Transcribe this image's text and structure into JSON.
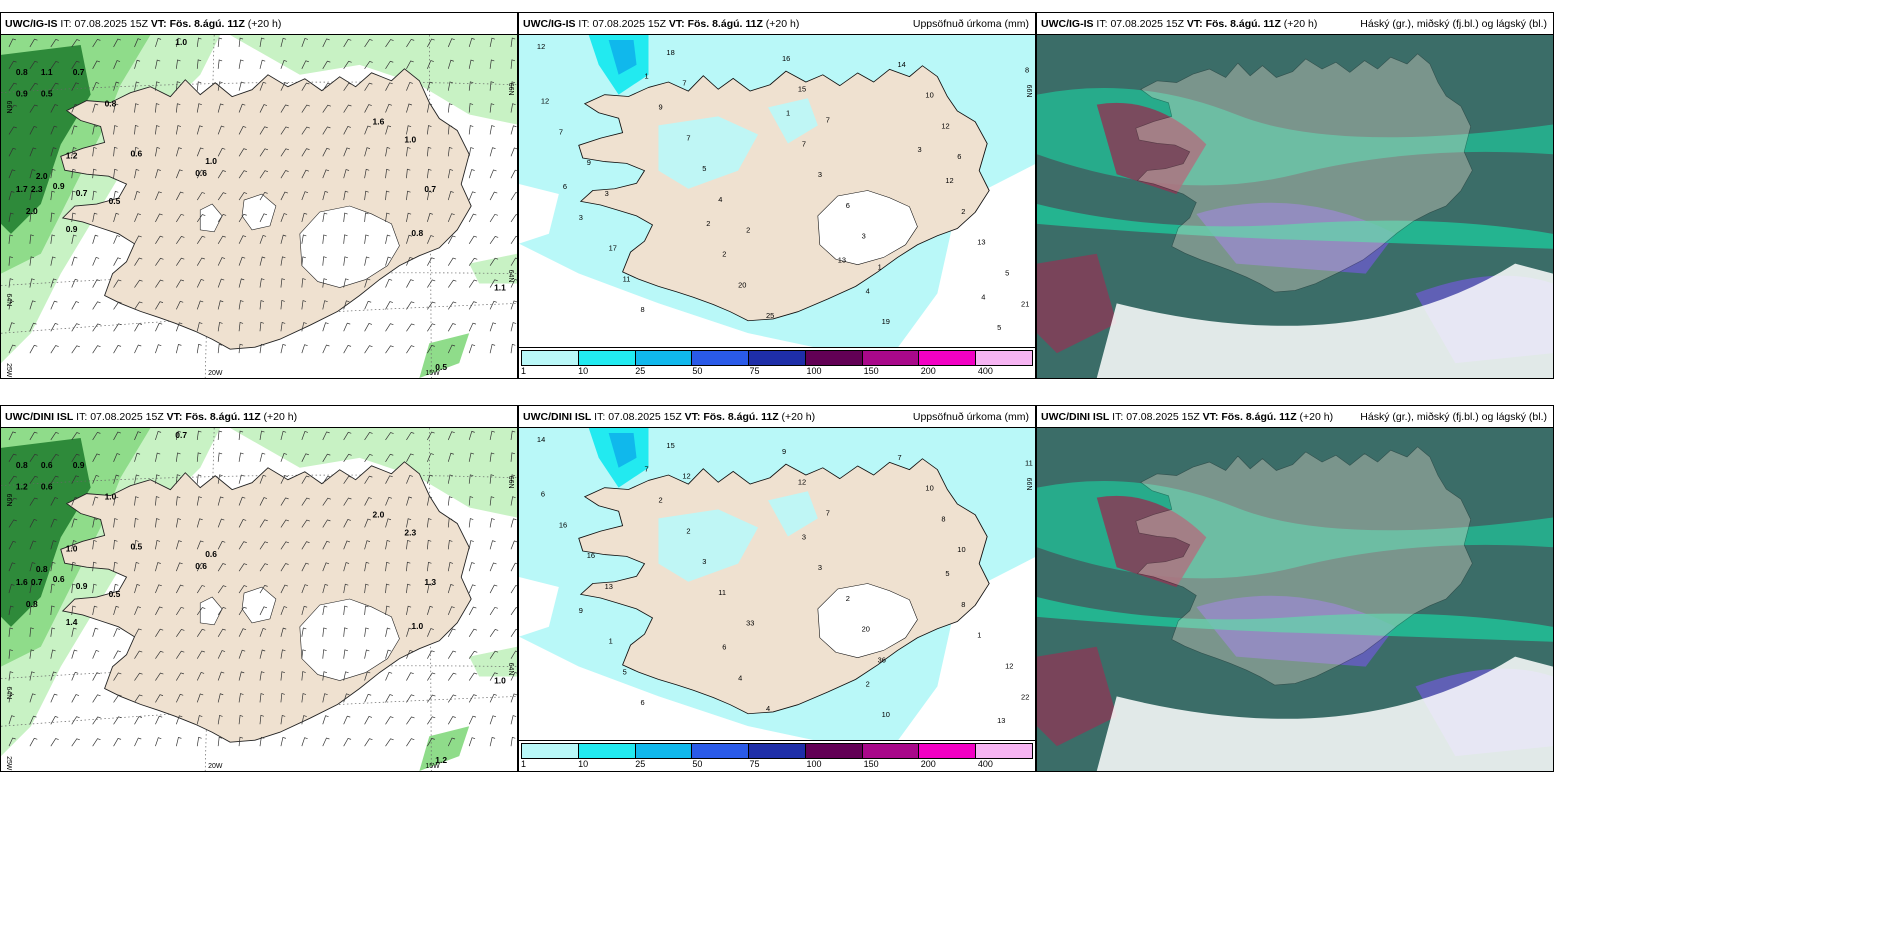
{
  "panels": [
    {
      "id": "p1",
      "model": "UWC/IG-IS",
      "it_label": "IT:",
      "it": "07.08.2025 15Z",
      "vt_label": "VT:",
      "vt": "Fös. 8.ágú. 11Z",
      "lead": "(+20 h)",
      "right_title": "",
      "kind": "wind",
      "axis_labels": {
        "lat_left": [
          "66N",
          "64N",
          "25W"
        ],
        "lon_bottom": [
          "20W",
          "15W"
        ],
        "lat_right": [
          "66N",
          "64N"
        ]
      },
      "values": [
        "1.0",
        "0.8",
        "1.1",
        "0.7",
        "0.9",
        "0.5",
        "0.8",
        "0.6",
        "1.2",
        "2.0",
        "1.7",
        "2.3",
        "0.9",
        "0.7",
        "2.0",
        "0.9",
        "0.5",
        "1.0",
        "1.6",
        "1.0",
        "0.7",
        "0.8",
        "1.1",
        "0.5",
        "0.6"
      ]
    },
    {
      "id": "p2",
      "model": "UWC/IG-IS",
      "it_label": "IT:",
      "it": "07.08.2025 15Z",
      "vt_label": "VT:",
      "vt": "Fös. 8.ágú. 11Z",
      "lead": "(+20 h)",
      "right_title": "Uppsöfnuð úrkoma (mm)",
      "kind": "precip",
      "axis_labels": {
        "lat_right": [
          "66N"
        ]
      },
      "values": [
        "12",
        "7",
        "7",
        "6",
        "3",
        "2",
        "1",
        "21",
        "18",
        "15",
        "12",
        "9",
        "4",
        "3",
        "5",
        "8",
        "16",
        "10",
        "7",
        "5",
        "6",
        "13",
        "11",
        "25",
        "14",
        "12",
        "7",
        "3",
        "2",
        "17",
        "20",
        "19",
        "8",
        "9",
        "7",
        "12",
        "3",
        "2",
        "4",
        "5",
        "1",
        "1",
        "3",
        "6",
        "2",
        "13",
        "4"
      ],
      "legend": {
        "colors": [
          "#b9f8f8",
          "#22eaf0",
          "#10b8ec",
          "#2a5ae8",
          "#1e2ea8",
          "#620055",
          "#a8088a",
          "#f200c4",
          "#f6b4f2"
        ],
        "ticks": [
          "1",
          "10",
          "25",
          "50",
          "75",
          "100",
          "150",
          "200",
          "400"
        ]
      }
    },
    {
      "id": "p3",
      "model": "UWC/IG-IS",
      "it_label": "IT:",
      "it": "07.08.2025 15Z",
      "vt_label": "VT:",
      "vt": "Fös. 8.ágú. 11Z",
      "lead": "(+20 h)",
      "right_title": "Háský (gr.), miðský (fj.bl.) og lágský (bl.)",
      "kind": "cloud"
    },
    {
      "id": "p4",
      "model": "UWC/DINI ISL",
      "it_label": "IT:",
      "it": "07.08.2025 15Z",
      "vt_label": "VT:",
      "vt": "Fös. 8.ágú. 11Z",
      "lead": "(+20 h)",
      "right_title": "",
      "kind": "wind",
      "axis_labels": {
        "lat_left": [
          "66N",
          "64N",
          "25W"
        ],
        "lon_bottom": [
          "20W",
          "15W"
        ],
        "lat_right": [
          "66N",
          "64N"
        ]
      },
      "values": [
        "0.7",
        "0.8",
        "0.6",
        "0.9",
        "1.2",
        "0.6",
        "1.0",
        "0.5",
        "1.0",
        "0.8",
        "1.6",
        "0.7",
        "0.6",
        "0.9",
        "0.8",
        "1.4",
        "0.5",
        "0.6",
        "2.0",
        "2.3",
        "1.3",
        "1.0",
        "1.0",
        "1.2",
        "0.6"
      ]
    },
    {
      "id": "p5",
      "model": "UWC/DINI ISL",
      "it_label": "IT:",
      "it": "07.08.2025 15Z",
      "vt_label": "VT:",
      "vt": "Fös. 8.ágú. 11Z",
      "lead": "(+20 h)",
      "right_title": "Uppsöfnuð úrkoma (mm)",
      "kind": "precip",
      "axis_labels": {
        "lat_right": [
          "66N"
        ]
      },
      "values": [
        "14",
        "12",
        "7",
        "10",
        "13",
        "33",
        "36",
        "22",
        "15",
        "12",
        "8",
        "16",
        "11",
        "20",
        "12",
        "6",
        "9",
        "10",
        "16",
        "3",
        "2",
        "1",
        "5",
        "4",
        "7",
        "6",
        "2",
        "3",
        "8",
        "1",
        "4",
        "10",
        "11",
        "2",
        "3",
        "5",
        "9",
        "6",
        "2",
        "13",
        "7"
      ],
      "legend": {
        "colors": [
          "#b9f8f8",
          "#22eaf0",
          "#10b8ec",
          "#2a5ae8",
          "#1e2ea8",
          "#620055",
          "#a8088a",
          "#f200c4",
          "#f6b4f2"
        ],
        "ticks": [
          "1",
          "10",
          "25",
          "50",
          "75",
          "100",
          "150",
          "200",
          "400"
        ]
      }
    },
    {
      "id": "p6",
      "model": "UWC/DINI ISL",
      "it_label": "IT:",
      "it": "07.08.2025 15Z",
      "vt_label": "VT:",
      "vt": "Fös. 8.ágú. 11Z",
      "lead": "(+20 h)",
      "right_title": "Háský (gr.), miðský (fj.bl.) og lágský (bl.)",
      "kind": "cloud"
    }
  ],
  "colors": {
    "land": "#efe1d0",
    "sea_precip": "#b9f8f8",
    "green_light": "#c8f2c4",
    "green_mid": "#8fdc8a",
    "green_dark": "#2e8a3a",
    "cloud_dark": "#3b6d68",
    "cloud_teal": "#1fc69a",
    "cloud_purple": "#6a5cc8",
    "cloud_red": "#8a3a56"
  }
}
